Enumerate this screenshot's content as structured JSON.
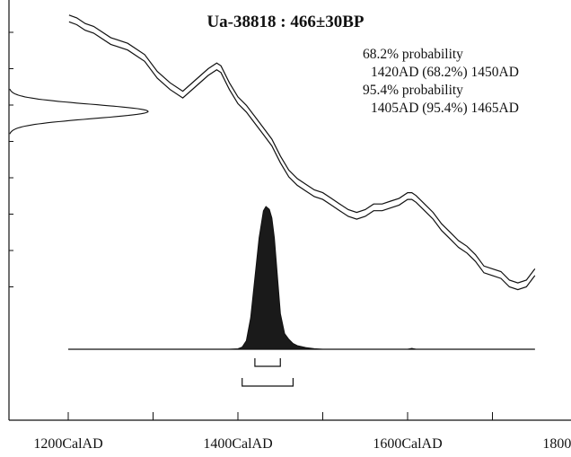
{
  "chart_data": {
    "type": "area",
    "title": "Ua-38818 : 466±30BP",
    "probabilities": [
      {
        "level": "68.2% probability",
        "range": "1420AD (68.2%) 1450AD",
        "from": 1420,
        "to": 1450
      },
      {
        "level": "95.4% probability",
        "range": "1405AD (95.4%) 1465AD",
        "from": 1405,
        "to": 1465
      }
    ],
    "x_ticks": [
      {
        "value": 1200,
        "label": "1200CalAD"
      },
      {
        "value": 1400,
        "label": "1400CalAD"
      },
      {
        "value": 1600,
        "label": "1600CalAD"
      },
      {
        "value": 1800,
        "label": "1800CalAD"
      }
    ],
    "xlim": [
      1200,
      1800
    ],
    "ylim": [
      0,
      1
    ],
    "calibration_curve": {
      "x": [
        1201,
        1210,
        1220,
        1230,
        1250,
        1270,
        1290,
        1305,
        1320,
        1335,
        1350,
        1365,
        1375,
        1380,
        1390,
        1400,
        1410,
        1420,
        1430,
        1440,
        1450,
        1460,
        1470,
        1480,
        1490,
        1500,
        1510,
        1520,
        1530,
        1540,
        1550,
        1560,
        1570,
        1580,
        1590,
        1600,
        1605,
        1610,
        1620,
        1630,
        1640,
        1650,
        1660,
        1670,
        1680,
        1690,
        1700,
        1710,
        1720,
        1730,
        1740,
        1750
      ],
      "y": [
        0.96,
        0.95,
        0.93,
        0.92,
        0.88,
        0.86,
        0.82,
        0.76,
        0.72,
        0.69,
        0.73,
        0.77,
        0.79,
        0.78,
        0.72,
        0.67,
        0.64,
        0.6,
        0.56,
        0.52,
        0.46,
        0.41,
        0.38,
        0.36,
        0.34,
        0.33,
        0.31,
        0.29,
        0.27,
        0.26,
        0.27,
        0.29,
        0.29,
        0.3,
        0.31,
        0.33,
        0.33,
        0.32,
        0.29,
        0.26,
        0.22,
        0.19,
        0.16,
        0.14,
        0.11,
        0.07,
        0.06,
        0.05,
        0.02,
        0.01,
        0.02,
        0.06
      ],
      "band_width": 0.012
    },
    "measurement_distribution": {
      "mean": 0.63,
      "sd": 0.025
    },
    "calibrated_distribution": {
      "x": [
        1200,
        1390,
        1400,
        1405,
        1410,
        1415,
        1420,
        1425,
        1430,
        1433,
        1437,
        1440,
        1443,
        1446,
        1450,
        1455,
        1460,
        1465,
        1470,
        1480,
        1490,
        1500,
        1600,
        1605,
        1610,
        1750
      ],
      "y": [
        0,
        0,
        0.003,
        0.015,
        0.06,
        0.22,
        0.5,
        0.78,
        0.97,
        1.0,
        0.98,
        0.92,
        0.78,
        0.55,
        0.25,
        0.11,
        0.07,
        0.04,
        0.025,
        0.012,
        0.004,
        0,
        0,
        0.006,
        0,
        0
      ]
    }
  }
}
